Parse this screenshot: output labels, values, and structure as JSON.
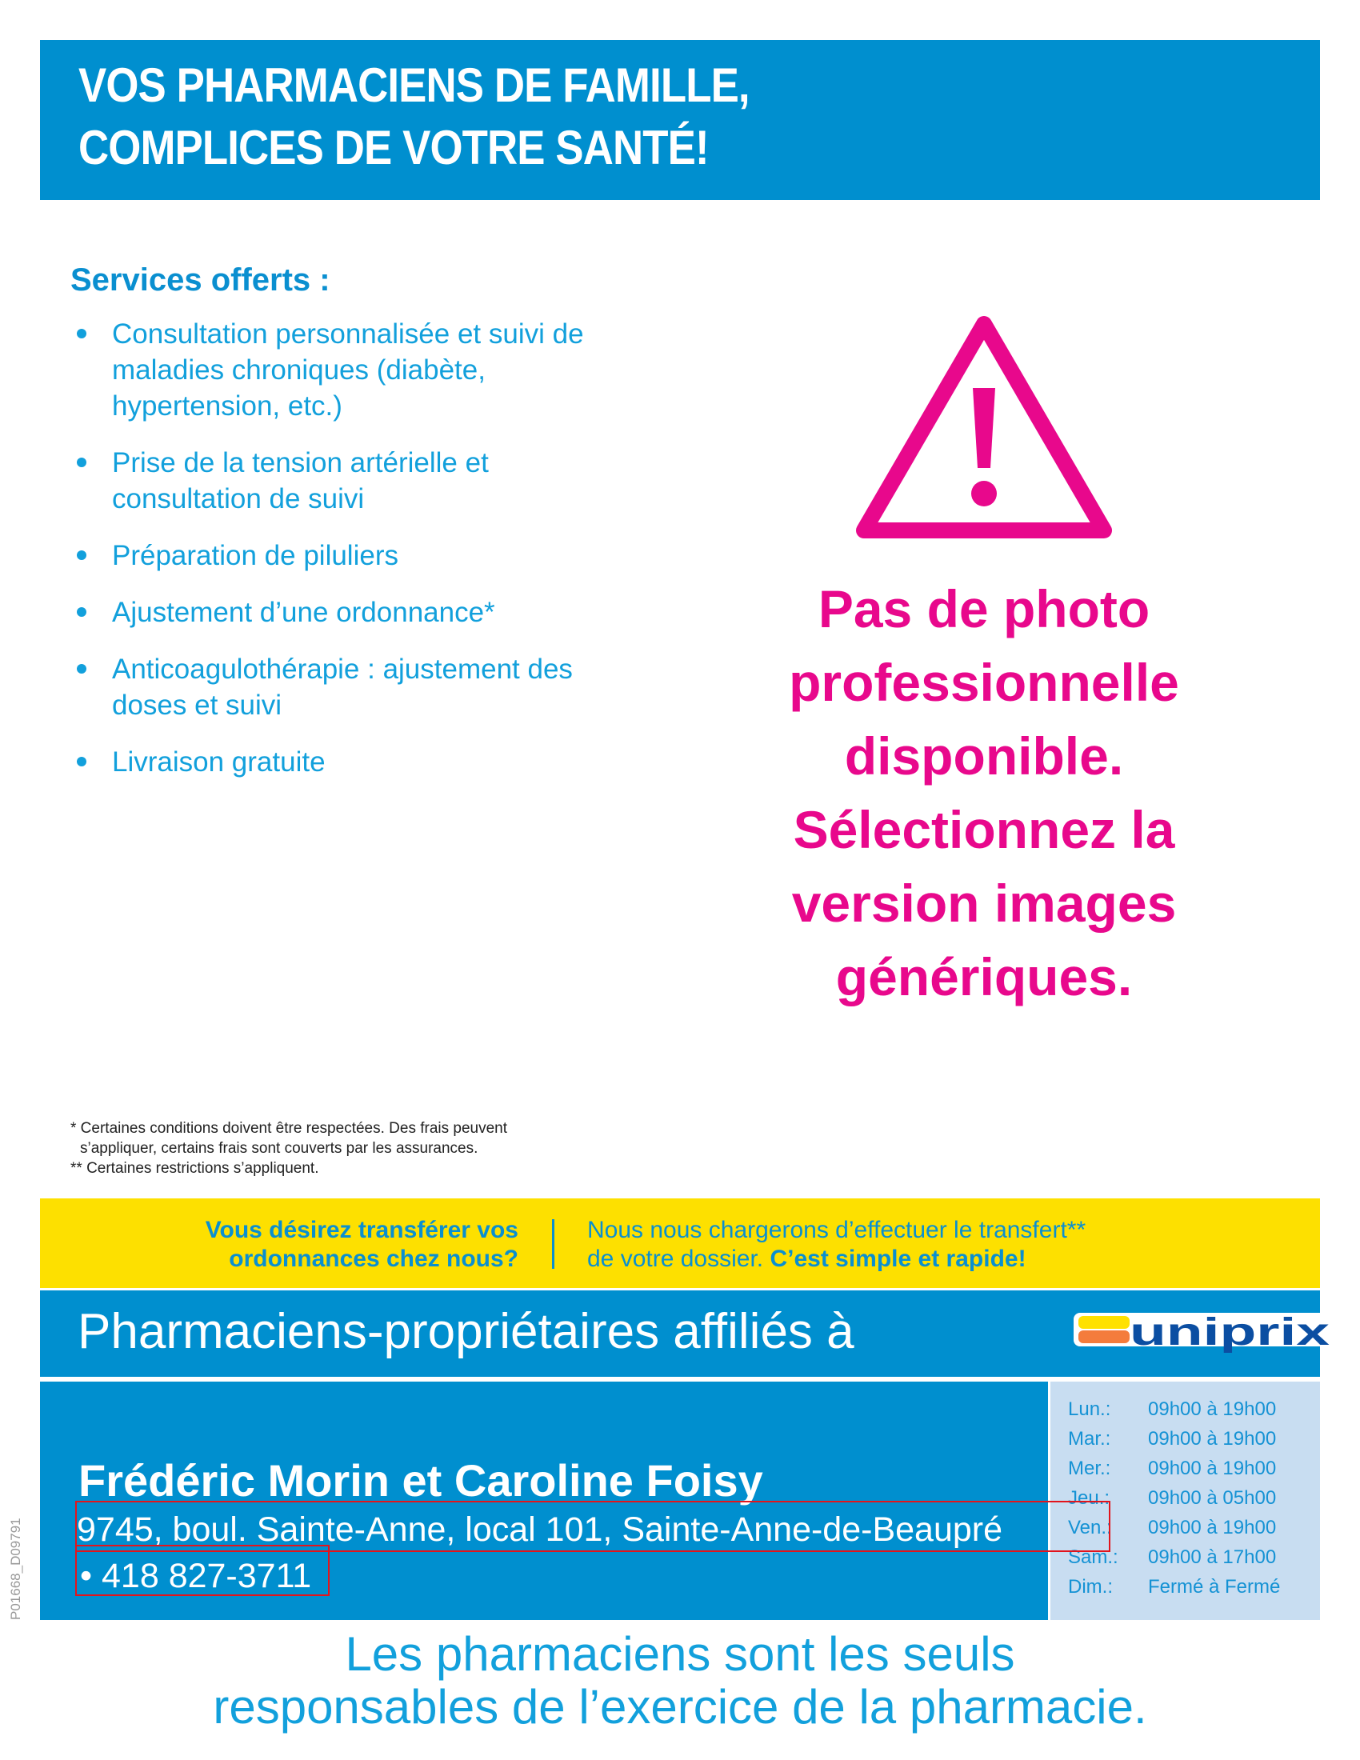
{
  "header": {
    "line1": "VOS PHARMACIENS DE FAMILLE,",
    "line2": "COMPLICES DE VOTRE SANTÉ!"
  },
  "services": {
    "title": "Services offerts :",
    "items": [
      "Consultation personnalisée et suivi de maladies chroniques (diabète, hypertension, etc.)",
      "Prise de la tension artérielle et consultation de suivi",
      "Préparation de piluliers",
      "Ajustement d’une ordonnance*",
      "Anticoagulothérapie : ajustement des doses et suivi",
      "Livraison gratuite"
    ]
  },
  "placeholder": {
    "icon": "warning-triangle-icon",
    "text": "Pas de photo professionnelle disponible. Sélectionnez la version images génériques."
  },
  "notes": {
    "n1a": "* Certaines conditions doivent être respectées. Des frais peuvent",
    "n1b": "s’appliquer, certains frais sont couverts par les assurances.",
    "n2": "** Certaines restrictions s’appliquent."
  },
  "transfer": {
    "question_l1": "Vous désirez transférer vos",
    "question_l2": "ordonnances chez nous?",
    "answer_l1": "Nous nous chargerons d’effectuer le transfert**",
    "answer_l2": "de votre dossier.",
    "answer_bold": "C’est simple et rapide!"
  },
  "affiliation": {
    "text": "Pharmaciens-propriétaires affiliés à",
    "logo": "uniprix"
  },
  "pharmacy": {
    "names": "Frédéric Morin et Caroline Foisy",
    "address": "9745, boul. Sainte-Anne, local 101, Sainte-Anne-de-Beaupré",
    "phone": "• 418 827-3711"
  },
  "hours": [
    {
      "day": "Lun.:",
      "time": "09h00 à 19h00"
    },
    {
      "day": "Mar.:",
      "time": "09h00 à 19h00"
    },
    {
      "day": "Mer.:",
      "time": "09h00 à 19h00"
    },
    {
      "day": "Jeu.:",
      "time": "09h00 à 05h00"
    },
    {
      "day": "Ven.:",
      "time": "09h00 à 19h00"
    },
    {
      "day": "Sam.:",
      "time": "09h00 à 17h00"
    },
    {
      "day": "Dim.:",
      "time": "Fermé à Fermé"
    }
  ],
  "code": "P01668_D09791",
  "footer": {
    "l1": "Les pharmaciens sont les seuls",
    "l2": "responsables de l’exercice de la pharmacie."
  },
  "colors": {
    "blue": "#008fcf",
    "pink": "#e8088c",
    "yellow": "#fde000",
    "light_blue": "#c8ddf1",
    "highlight": "#e3141c"
  }
}
